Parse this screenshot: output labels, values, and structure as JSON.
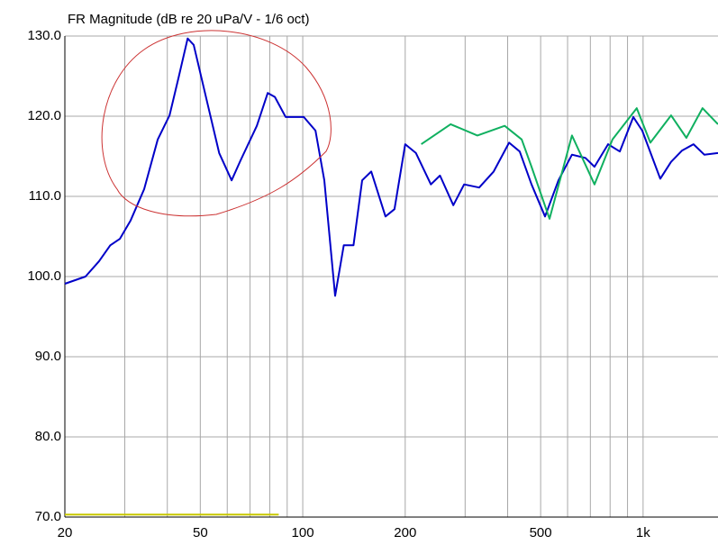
{
  "chart_data": {
    "type": "line",
    "title": "FR Magnitude (dB re 20 uPa/V - 1/6 oct)",
    "xscale": "log",
    "xlim": [
      20,
      1660
    ],
    "ylim": [
      70,
      130
    ],
    "xticks": [
      20,
      50,
      100,
      200,
      500,
      {
        "value": 1000,
        "label": "1k"
      }
    ],
    "xgrid": [
      30,
      40,
      60,
      70,
      80,
      90,
      300,
      400,
      600,
      700,
      800,
      900
    ],
    "yticks": [
      {
        "value": 70,
        "label": "70.0"
      },
      {
        "value": 80,
        "label": "80.0"
      },
      {
        "value": 90,
        "label": "90.0"
      },
      {
        "value": 100,
        "label": "100.0"
      },
      {
        "value": 110,
        "label": "110.0"
      },
      {
        "value": 120,
        "label": "120.0"
      },
      {
        "value": 130,
        "label": "130.0"
      }
    ],
    "grid": true,
    "series": [
      {
        "color": "#0000c8",
        "x": [
          20,
          23,
          25.2,
          27.2,
          29,
          31.2,
          34.2,
          37.5,
          40.6,
          43.2,
          45.9,
          47.8,
          52.5,
          56.8,
          61.8,
          65.7,
          73.3,
          78.9,
          82.8,
          89.1,
          100.7,
          109,
          115.7,
          124.5,
          132,
          141,
          149.5,
          159,
          175,
          186,
          200,
          215,
          238,
          253,
          277,
          298,
          330,
          364,
          404,
          434,
          470,
          515,
          564,
          618,
          677,
          720,
          789,
          854,
          936,
          994,
          1123,
          1208,
          1300,
          1406,
          1513,
          1660
        ],
        "values": [
          99.1,
          100,
          101.9,
          103.9,
          104.7,
          107,
          110.9,
          117.1,
          120.1,
          124.9,
          129.7,
          128.9,
          121.6,
          115.4,
          112,
          114.5,
          118.8,
          122.9,
          122.4,
          119.9,
          119.9,
          118.2,
          112,
          97.6,
          103.9,
          103.9,
          112,
          113.1,
          107.5,
          108.4,
          116.5,
          115.4,
          111.5,
          112.6,
          108.9,
          111.5,
          111.1,
          113.1,
          116.7,
          115.6,
          111.5,
          107.5,
          112,
          115.2,
          114.8,
          113.7,
          116.5,
          115.6,
          119.9,
          118.2,
          112.2,
          114.3,
          115.7,
          116.5,
          115.2,
          115.4
        ]
      },
      {
        "color": "#10b060",
        "x": [
          223,
          272,
          326,
          392,
          440,
          470,
          531,
          618,
          720,
          813,
          958,
          1050,
          1208,
          1340,
          1495,
          1660
        ],
        "values": [
          116.5,
          119,
          117.6,
          118.8,
          117.1,
          113.7,
          107.2,
          117.6,
          111.5,
          117.1,
          121,
          116.7,
          120.1,
          117.3,
          121,
          119
        ]
      },
      {
        "color": "#c8c800",
        "x": [
          20,
          85
        ],
        "values": [
          70.3,
          70.3
        ]
      }
    ]
  }
}
